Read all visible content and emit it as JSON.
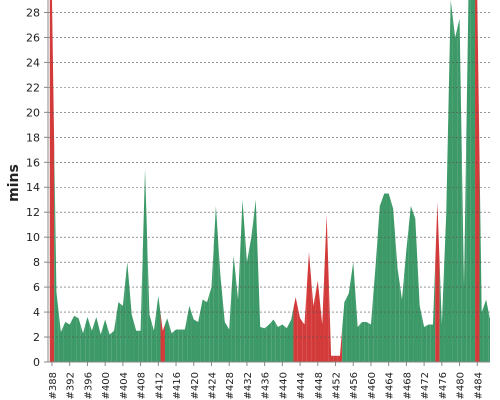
{
  "chart_data": {
    "type": "area",
    "y_label": "mins",
    "categories": [
      "#388",
      null,
      null,
      null,
      "#392",
      null,
      null,
      null,
      "#396",
      null,
      null,
      null,
      "#400",
      null,
      null,
      null,
      "#404",
      null,
      null,
      null,
      "#408",
      null,
      null,
      null,
      "#412",
      null,
      null,
      null,
      "#416",
      null,
      null,
      null,
      "#420",
      null,
      null,
      null,
      "#424",
      null,
      null,
      null,
      "#428",
      null,
      null,
      null,
      "#432",
      null,
      null,
      null,
      "#436",
      null,
      null,
      null,
      "#440",
      null,
      null,
      null,
      "#444",
      null,
      null,
      null,
      "#448",
      null,
      null,
      null,
      "#452",
      null,
      null,
      null,
      "#456",
      null,
      null,
      null,
      "#460",
      null,
      null,
      null,
      "#464",
      null,
      null,
      null,
      "#468",
      null,
      null,
      null,
      "#472",
      null,
      null,
      null,
      "#476",
      null,
      null,
      null,
      "#480",
      null,
      null,
      null,
      "#484",
      null,
      null,
      null
    ],
    "values": [
      29,
      5.6,
      2.4,
      3.2,
      3.0,
      3.7,
      3.5,
      2.3,
      3.6,
      2.5,
      3.6,
      2.2,
      3.4,
      2.2,
      2.5,
      4.8,
      4.5,
      8.0,
      3.8,
      2.5,
      2.5,
      15.5,
      3.8,
      2.5,
      5.3,
      2.5,
      3.5,
      2.3,
      2.6,
      2.6,
      2.6,
      4.5,
      3.4,
      3.2,
      5.0,
      4.8,
      6.0,
      12.5,
      7.0,
      3.2,
      2.6,
      8.5,
      5.0,
      13.0,
      8.0,
      10.0,
      13.0,
      2.8,
      2.7,
      3.0,
      3.4,
      2.8,
      3.0,
      2.7,
      3.4,
      5.2,
      3.5,
      3.0,
      8.8,
      4.5,
      6.5,
      3.0,
      11.8,
      0.5,
      0.5,
      0.5,
      4.8,
      5.5,
      8.0,
      2.8,
      3.2,
      3.2,
      3.0,
      7.5,
      12.5,
      13.5,
      13.5,
      12.3,
      7.5,
      5.0,
      9.0,
      12.5,
      11.5,
      4.5,
      2.8,
      3.0,
      3.0,
      12.8,
      3.0,
      12,
      29,
      26,
      27.5,
      6.0,
      29,
      29,
      29,
      4,
      5,
      3.2
    ],
    "colors": [
      "#d33a3a",
      "#3d9a68",
      "#3d9a68",
      "#3d9a68",
      "#3d9a68",
      "#3d9a68",
      "#3d9a68",
      "#3d9a68",
      "#3d9a68",
      "#3d9a68",
      "#3d9a68",
      "#3d9a68",
      "#3d9a68",
      "#3d9a68",
      "#3d9a68",
      "#3d9a68",
      "#3d9a68",
      "#3d9a68",
      "#3d9a68",
      "#3d9a68",
      "#3d9a68",
      "#3d9a68",
      "#3d9a68",
      "#3d9a68",
      "#3d9a68",
      "#d33a3a",
      "#3d9a68",
      "#3d9a68",
      "#3d9a68",
      "#3d9a68",
      "#3d9a68",
      "#3d9a68",
      "#3d9a68",
      "#3d9a68",
      "#3d9a68",
      "#3d9a68",
      "#3d9a68",
      "#3d9a68",
      "#3d9a68",
      "#3d9a68",
      "#3d9a68",
      "#3d9a68",
      "#3d9a68",
      "#3d9a68",
      "#3d9a68",
      "#3d9a68",
      "#3d9a68",
      "#3d9a68",
      "#3d9a68",
      "#3d9a68",
      "#3d9a68",
      "#3d9a68",
      "#3d9a68",
      "#3d9a68",
      "#3d9a68",
      "#d33a3a",
      "#d33a3a",
      "#d33a3a",
      "#d33a3a",
      "#d33a3a",
      "#d33a3a",
      "#d33a3a",
      "#d33a3a",
      "#d33a3a",
      "#d33a3a",
      "#d33a3a",
      "#3d9a68",
      "#3d9a68",
      "#3d9a68",
      "#3d9a68",
      "#3d9a68",
      "#3d9a68",
      "#3d9a68",
      "#3d9a68",
      "#3d9a68",
      "#3d9a68",
      "#3d9a68",
      "#3d9a68",
      "#3d9a68",
      "#3d9a68",
      "#3d9a68",
      "#3d9a68",
      "#3d9a68",
      "#3d9a68",
      "#3d9a68",
      "#3d9a68",
      "#3d9a68",
      "#d33a3a",
      "#3d9a68",
      "#3d9a68",
      "#3d9a68",
      "#3d9a68",
      "#3d9a68",
      "#3d9a68",
      "#3d9a68",
      "#3d9a68",
      "#d33a3a",
      "#3d9a68",
      "#3d9a68",
      "#3d9a68"
    ],
    "ylim": [
      0,
      29
    ],
    "yticks": [
      0,
      2,
      4,
      6,
      8,
      10,
      12,
      14,
      16,
      18,
      20,
      22,
      24,
      26,
      28
    ],
    "grid": true
  }
}
